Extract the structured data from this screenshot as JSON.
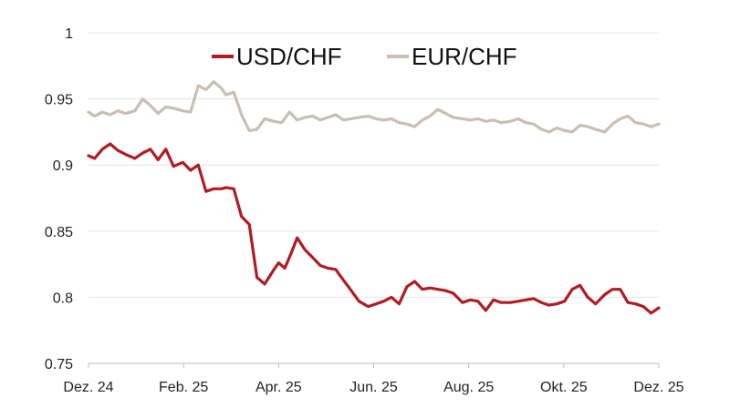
{
  "chart_data": {
    "type": "line",
    "title": "",
    "xlabel": "",
    "ylabel": "",
    "x_tick_labels": [
      "Dez. 24",
      "Feb. 25",
      "Apr. 25",
      "Jun. 25",
      "Aug. 25",
      "Okt. 25",
      "Dez. 25"
    ],
    "y_tick_labels": [
      "0.75",
      "0.8",
      "0.85",
      "0.9",
      "0.95",
      "1"
    ],
    "ylim": [
      0.75,
      1.0
    ],
    "grid": "horizontal",
    "legend_position": "top-center",
    "series": [
      {
        "name": "USD/CHF",
        "color": "#b01c24",
        "x": [
          "2024-12-01",
          "2024-12-05",
          "2024-12-10",
          "2024-12-15",
          "2024-12-20",
          "2024-12-25",
          "2024-12-31",
          "2025-01-05",
          "2025-01-10",
          "2025-01-15",
          "2025-01-20",
          "2025-01-25",
          "2025-01-31",
          "2025-02-05",
          "2025-02-10",
          "2025-02-15",
          "2025-02-20",
          "2025-02-25",
          "2025-02-28",
          "2025-03-05",
          "2025-03-10",
          "2025-03-15",
          "2025-03-20",
          "2025-03-25",
          "2025-03-31",
          "2025-04-03",
          "2025-04-07",
          "2025-04-11",
          "2025-04-15",
          "2025-04-20",
          "2025-04-25",
          "2025-04-30",
          "2025-05-05",
          "2025-05-10",
          "2025-05-13",
          "2025-05-20",
          "2025-05-25",
          "2025-05-31",
          "2025-06-05",
          "2025-06-10",
          "2025-06-15",
          "2025-06-20",
          "2025-06-25",
          "2025-06-30",
          "2025-07-05",
          "2025-07-10",
          "2025-07-15",
          "2025-07-20",
          "2025-07-25",
          "2025-07-31",
          "2025-08-05",
          "2025-08-10",
          "2025-08-15",
          "2025-08-20",
          "2025-08-25",
          "2025-08-31",
          "2025-09-05",
          "2025-09-10",
          "2025-09-15",
          "2025-09-20",
          "2025-09-25",
          "2025-09-30",
          "2025-10-05",
          "2025-10-10",
          "2025-10-15",
          "2025-10-20",
          "2025-10-25",
          "2025-10-31",
          "2025-11-05",
          "2025-11-10",
          "2025-11-15",
          "2025-11-20",
          "2025-11-25",
          "2025-11-30",
          "2025-12-05"
        ],
        "values": [
          0.907,
          0.905,
          0.912,
          0.916,
          0.911,
          0.908,
          0.905,
          0.909,
          0.912,
          0.904,
          0.912,
          0.899,
          0.902,
          0.896,
          0.9,
          0.88,
          0.882,
          0.882,
          0.883,
          0.882,
          0.861,
          0.855,
          0.815,
          0.81,
          0.821,
          0.826,
          0.822,
          0.833,
          0.845,
          0.836,
          0.83,
          0.824,
          0.822,
          0.821,
          0.816,
          0.805,
          0.797,
          0.793,
          0.795,
          0.797,
          0.8,
          0.795,
          0.808,
          0.812,
          0.806,
          0.807,
          0.806,
          0.805,
          0.803,
          0.796,
          0.798,
          0.797,
          0.79,
          0.798,
          0.796,
          0.796,
          0.797,
          0.798,
          0.799,
          0.796,
          0.794,
          0.795,
          0.797,
          0.806,
          0.809,
          0.8,
          0.795,
          0.802,
          0.806,
          0.806,
          0.796,
          0.795,
          0.793,
          0.788,
          0.792
        ]
      },
      {
        "name": "EUR/CHF",
        "color": "#c9bfb2",
        "x": [
          "2024-12-01",
          "2024-12-05",
          "2024-12-10",
          "2024-12-15",
          "2024-12-20",
          "2024-12-25",
          "2024-12-31",
          "2025-01-05",
          "2025-01-10",
          "2025-01-15",
          "2025-01-20",
          "2025-01-25",
          "2025-01-31",
          "2025-02-05",
          "2025-02-10",
          "2025-02-15",
          "2025-02-20",
          "2025-02-25",
          "2025-02-28",
          "2025-03-05",
          "2025-03-10",
          "2025-03-15",
          "2025-03-20",
          "2025-03-25",
          "2025-03-31",
          "2025-04-05",
          "2025-04-10",
          "2025-04-15",
          "2025-04-20",
          "2025-04-25",
          "2025-04-30",
          "2025-05-05",
          "2025-05-10",
          "2025-05-15",
          "2025-05-20",
          "2025-05-25",
          "2025-05-31",
          "2025-06-05",
          "2025-06-10",
          "2025-06-15",
          "2025-06-20",
          "2025-06-25",
          "2025-06-30",
          "2025-07-05",
          "2025-07-10",
          "2025-07-15",
          "2025-07-20",
          "2025-07-25",
          "2025-07-31",
          "2025-08-05",
          "2025-08-10",
          "2025-08-15",
          "2025-08-20",
          "2025-08-25",
          "2025-08-31",
          "2025-09-05",
          "2025-09-10",
          "2025-09-15",
          "2025-09-20",
          "2025-09-25",
          "2025-09-30",
          "2025-10-05",
          "2025-10-10",
          "2025-10-15",
          "2025-10-20",
          "2025-10-25",
          "2025-10-31",
          "2025-11-05",
          "2025-11-10",
          "2025-11-15",
          "2025-11-20",
          "2025-11-25",
          "2025-11-30",
          "2025-12-05"
        ],
        "values": [
          0.94,
          0.937,
          0.94,
          0.938,
          0.941,
          0.939,
          0.941,
          0.95,
          0.945,
          0.939,
          0.944,
          0.943,
          0.941,
          0.94,
          0.96,
          0.957,
          0.963,
          0.958,
          0.953,
          0.955,
          0.938,
          0.926,
          0.927,
          0.935,
          0.933,
          0.932,
          0.94,
          0.934,
          0.936,
          0.937,
          0.934,
          0.936,
          0.938,
          0.934,
          0.935,
          0.936,
          0.937,
          0.935,
          0.934,
          0.935,
          0.932,
          0.931,
          0.929,
          0.934,
          0.937,
          0.942,
          0.939,
          0.936,
          0.935,
          0.934,
          0.935,
          0.933,
          0.934,
          0.932,
          0.933,
          0.935,
          0.932,
          0.931,
          0.927,
          0.925,
          0.928,
          0.926,
          0.925,
          0.93,
          0.929,
          0.927,
          0.925,
          0.931,
          0.935,
          0.937,
          0.932,
          0.931,
          0.929,
          0.931
        ]
      }
    ]
  }
}
